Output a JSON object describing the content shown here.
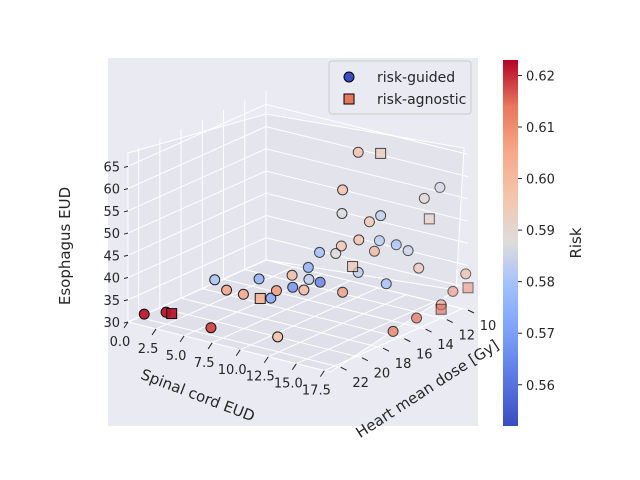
{
  "chart_data": {
    "type": "scatter",
    "projection": "3d",
    "xlabel": "Spinal cord EUD",
    "ylabel": "Heart mean dose [Gy]",
    "zlabel": "Esophagus EUD",
    "xlim": [
      0,
      18
    ],
    "ylim": [
      10,
      23
    ],
    "zlim": [
      30,
      68
    ],
    "xticks": [
      "0.0",
      "2.5",
      "5.0",
      "7.5",
      "10.0",
      "12.5",
      "15.0",
      "17.5"
    ],
    "yticks": [
      "10",
      "12",
      "14",
      "16",
      "18",
      "20",
      "22"
    ],
    "zticks": [
      "30",
      "35",
      "40",
      "45",
      "50",
      "55",
      "60",
      "65"
    ],
    "colorbar": {
      "label": "Risk",
      "min": 0.552,
      "max": 0.623,
      "ticks": [
        "0.56",
        "0.57",
        "0.58",
        "0.59",
        "0.60",
        "0.61",
        "0.62"
      ],
      "colormap": "coolwarm"
    },
    "legend": {
      "position": "top-right",
      "entries": [
        {
          "label": "risk-guided",
          "marker": "circle",
          "color": "#3b4cc0"
        },
        {
          "label": "risk-agnostic",
          "marker": "square",
          "color": "#e8765c"
        }
      ]
    },
    "series": [
      {
        "name": "risk-guided",
        "marker": "circle",
        "points": [
          [
            0.5,
            22,
            31,
            0.621
          ],
          [
            1.5,
            21,
            31,
            0.622
          ],
          [
            5.5,
            21,
            30,
            0.618
          ],
          [
            10.5,
            20,
            30,
            0.597
          ],
          [
            17.0,
            16,
            31,
            0.613
          ],
          [
            17.2,
            14,
            32,
            0.615
          ],
          [
            17.5,
            12,
            33,
            0.607
          ],
          [
            17.6,
            11,
            35,
            0.61
          ],
          [
            17.8,
            10,
            38,
            0.603
          ],
          [
            3.0,
            18,
            36,
            0.58
          ],
          [
            6.0,
            17,
            37,
            0.574
          ],
          [
            5.0,
            19,
            36,
            0.606
          ],
          [
            8.0,
            18,
            35,
            0.572
          ],
          [
            6.5,
            19,
            36,
            0.605
          ],
          [
            8.5,
            18,
            37,
            0.608
          ],
          [
            9.0,
            17,
            37,
            0.566
          ],
          [
            10.0,
            17,
            37,
            0.6
          ],
          [
            12.5,
            16,
            37,
            0.608
          ],
          [
            9.5,
            16,
            38,
            0.583
          ],
          [
            8.0,
            16,
            38,
            0.599
          ],
          [
            8.5,
            15,
            39,
            0.572
          ],
          [
            10.5,
            16,
            38,
            0.562
          ],
          [
            12.0,
            14,
            39,
            0.582
          ],
          [
            14.5,
            14,
            38,
            0.578
          ],
          [
            15.5,
            12,
            40,
            0.597
          ],
          [
            10.0,
            14,
            42,
            0.588
          ],
          [
            10.5,
            14,
            44,
            0.597
          ],
          [
            9.5,
            15,
            43,
            0.578
          ],
          [
            12.5,
            13,
            43,
            0.603
          ],
          [
            12.0,
            12,
            44,
            0.581
          ],
          [
            13.5,
            12,
            44,
            0.578
          ],
          [
            15.5,
            13,
            45,
            0.584
          ],
          [
            13.0,
            15,
            48,
            0.598
          ],
          [
            13.0,
            14,
            51,
            0.596
          ],
          [
            11.5,
            15,
            53,
            0.587
          ],
          [
            14.0,
            14,
            53,
            0.583
          ],
          [
            16.0,
            12,
            56,
            0.59
          ],
          [
            12.5,
            16,
            60,
            0.598
          ],
          [
            12.0,
            14,
            66,
            0.599
          ],
          [
            15.5,
            10,
            56,
            0.586
          ]
        ]
      },
      {
        "name": "risk-agnostic",
        "marker": "square",
        "points": [
          [
            2.0,
            21,
            31,
            0.622
          ],
          [
            8.0,
            19,
            36,
            0.603
          ],
          [
            11.5,
            14,
            40,
            0.596
          ],
          [
            15.5,
            11,
            50,
            0.593
          ],
          [
            14.0,
            14,
            67,
            0.595
          ],
          [
            17.5,
            12,
            32,
            0.615
          ],
          [
            18.0,
            10,
            35,
            0.61
          ]
        ]
      }
    ]
  }
}
